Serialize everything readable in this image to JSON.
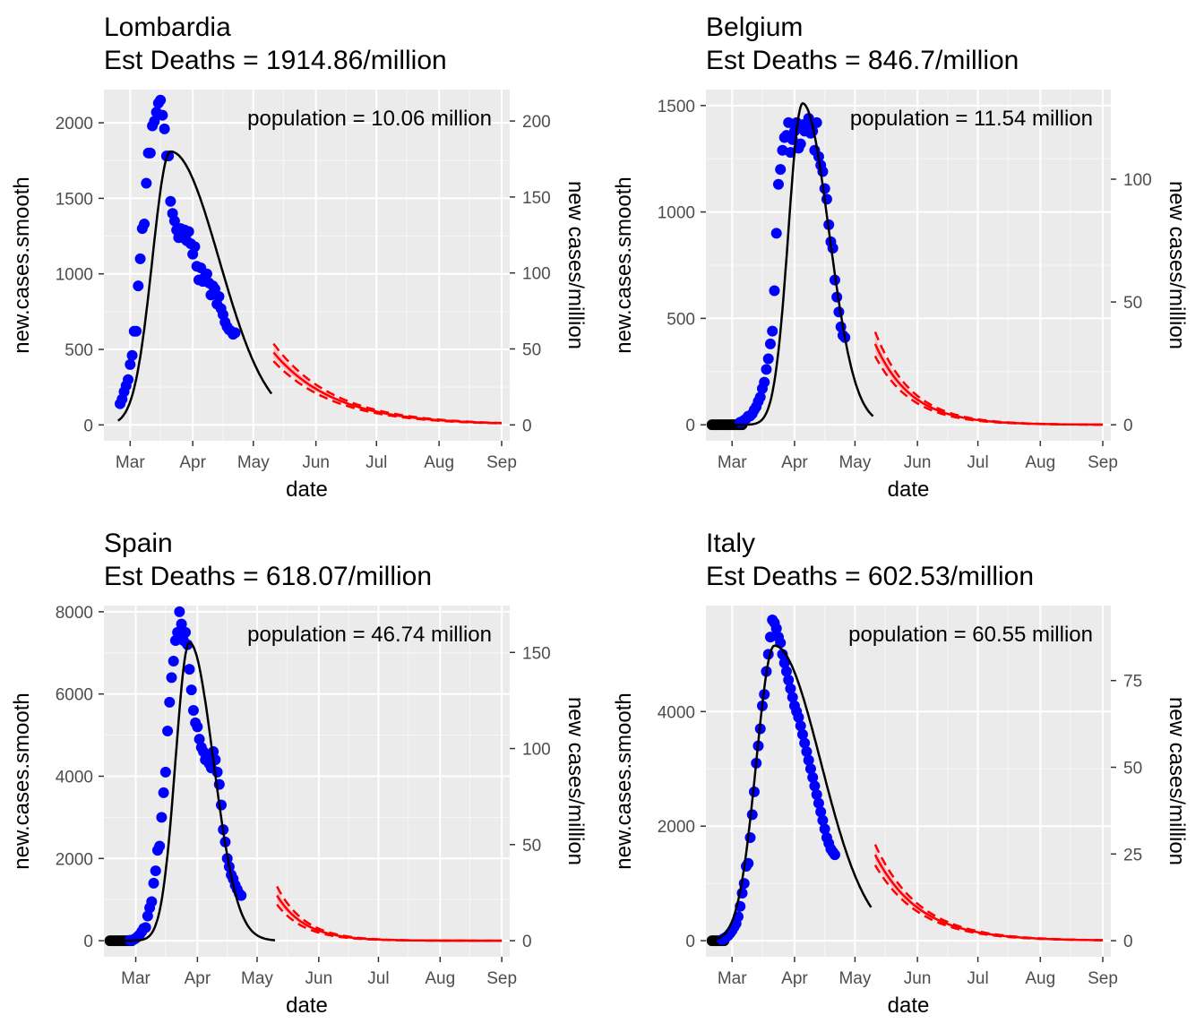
{
  "colors": {
    "panel_bg": "#ebebeb",
    "grid": "#ffffff",
    "points": "#0000ff",
    "pre_points": "#000000",
    "fit": "#000000",
    "forecast": "#ff0000",
    "band": "#ffb6c1"
  },
  "chart_data": [
    {
      "type": "scatter",
      "title": "Lombardia",
      "subtitle": "Est Deaths = 1914.86/million",
      "annotation": "population = 10.06 million",
      "xlabel": "date",
      "ylabel": "new.cases.smooth",
      "y2label": "new cases/million",
      "x_ticks": [
        "Mar",
        "Apr",
        "May",
        "Jun",
        "Jul",
        "Aug",
        "Sep"
      ],
      "y_ticks": [
        0,
        500,
        1000,
        1500,
        2000
      ],
      "y2_ticks": [
        0,
        50,
        100,
        150,
        200
      ],
      "population_million": 10.06,
      "xlim": [
        "2020-02-17",
        "2020-09-05"
      ],
      "ylim": [
        -105,
        2220
      ],
      "fit": {
        "peak_date": "2020-03-21",
        "peak_value": 1810,
        "start": "2020-02-24",
        "end": "2020-05-10",
        "sigma_left": 9,
        "sigma_right": 24,
        "shape": "normal"
      },
      "forecast": {
        "start": "2020-05-11",
        "end": "2020-09-01",
        "value_start": 480,
        "tau_days": 30,
        "band": 0.12
      },
      "pre_points": [],
      "points": [
        [
          "2020-02-25",
          140
        ],
        [
          "2020-02-26",
          170
        ],
        [
          "2020-02-27",
          220
        ],
        [
          "2020-02-28",
          260
        ],
        [
          "2020-02-29",
          300
        ],
        [
          "2020-03-01",
          400
        ],
        [
          "2020-03-02",
          460
        ],
        [
          "2020-03-03",
          620
        ],
        [
          "2020-03-04",
          620
        ],
        [
          "2020-03-05",
          920
        ],
        [
          "2020-03-06",
          1100
        ],
        [
          "2020-03-07",
          1300
        ],
        [
          "2020-03-08",
          1330
        ],
        [
          "2020-03-09",
          1600
        ],
        [
          "2020-03-10",
          1800
        ],
        [
          "2020-03-11",
          1800
        ],
        [
          "2020-03-12",
          1980
        ],
        [
          "2020-03-13",
          2010
        ],
        [
          "2020-03-14",
          2070
        ],
        [
          "2020-03-15",
          2130
        ],
        [
          "2020-03-16",
          2150
        ],
        [
          "2020-03-17",
          2050
        ],
        [
          "2020-03-18",
          1960
        ],
        [
          "2020-03-19",
          1780
        ],
        [
          "2020-03-20",
          1780
        ],
        [
          "2020-03-21",
          1480
        ],
        [
          "2020-03-22",
          1400
        ],
        [
          "2020-03-23",
          1350
        ],
        [
          "2020-03-24",
          1290
        ],
        [
          "2020-03-25",
          1240
        ],
        [
          "2020-03-26",
          1300
        ],
        [
          "2020-03-27",
          1240
        ],
        [
          "2020-03-28",
          1290
        ],
        [
          "2020-03-29",
          1220
        ],
        [
          "2020-03-30",
          1280
        ],
        [
          "2020-03-31",
          1200
        ],
        [
          "2020-04-01",
          1130
        ],
        [
          "2020-04-02",
          1180
        ],
        [
          "2020-04-03",
          1050
        ],
        [
          "2020-04-04",
          960
        ],
        [
          "2020-04-05",
          1040
        ],
        [
          "2020-04-06",
          950
        ],
        [
          "2020-04-07",
          980
        ],
        [
          "2020-04-08",
          1000
        ],
        [
          "2020-04-09",
          940
        ],
        [
          "2020-04-10",
          860
        ],
        [
          "2020-04-11",
          920
        ],
        [
          "2020-04-12",
          900
        ],
        [
          "2020-04-13",
          800
        ],
        [
          "2020-04-14",
          850
        ],
        [
          "2020-04-15",
          770
        ],
        [
          "2020-04-16",
          730
        ],
        [
          "2020-04-17",
          680
        ],
        [
          "2020-04-18",
          650
        ],
        [
          "2020-04-19",
          630
        ],
        [
          "2020-04-20",
          620
        ],
        [
          "2020-04-21",
          600
        ],
        [
          "2020-04-22",
          610
        ]
      ]
    },
    {
      "type": "scatter",
      "title": "Belgium",
      "subtitle": "Est Deaths = 846.7/million",
      "annotation": "population = 11.54 million",
      "xlabel": "date",
      "ylabel": "new.cases.smooth",
      "y2label": "new cases/million",
      "x_ticks": [
        "Mar",
        "Apr",
        "May",
        "Jun",
        "Jul",
        "Aug",
        "Sep"
      ],
      "y_ticks": [
        0,
        500,
        1000,
        1500
      ],
      "y2_ticks": [
        0,
        50,
        100
      ],
      "population_million": 11.54,
      "xlim": [
        "2020-02-17",
        "2020-09-05"
      ],
      "ylim": [
        -75,
        1575
      ],
      "fit": {
        "peak_date": "2020-04-05",
        "peak_value": 1510,
        "start": "2020-02-20",
        "end": "2020-05-10",
        "sigma_left": 7,
        "sigma_right": 13,
        "shape": "normal"
      },
      "forecast": {
        "start": "2020-05-11",
        "end": "2020-09-01",
        "value_start": 380,
        "tau_days": 18,
        "band": 0.15
      },
      "pre_points": [
        "2020-02-20",
        "2020-02-21",
        "2020-02-22",
        "2020-02-23",
        "2020-02-24",
        "2020-02-25",
        "2020-02-26",
        "2020-02-27",
        "2020-02-28",
        "2020-02-29",
        "2020-03-01",
        "2020-03-02",
        "2020-03-03",
        "2020-03-04",
        "2020-03-05",
        "2020-03-06"
      ],
      "points": [
        [
          "2020-03-05",
          12
        ],
        [
          "2020-03-06",
          15
        ],
        [
          "2020-03-07",
          22
        ],
        [
          "2020-03-08",
          28
        ],
        [
          "2020-03-09",
          40
        ],
        [
          "2020-03-10",
          42
        ],
        [
          "2020-03-11",
          52
        ],
        [
          "2020-03-12",
          70
        ],
        [
          "2020-03-13",
          85
        ],
        [
          "2020-03-14",
          110
        ],
        [
          "2020-03-15",
          130
        ],
        [
          "2020-03-16",
          170
        ],
        [
          "2020-03-17",
          200
        ],
        [
          "2020-03-18",
          260
        ],
        [
          "2020-03-19",
          310
        ],
        [
          "2020-03-20",
          380
        ],
        [
          "2020-03-21",
          440
        ],
        [
          "2020-03-22",
          630
        ],
        [
          "2020-03-23",
          900
        ],
        [
          "2020-03-24",
          1130
        ],
        [
          "2020-03-25",
          1200
        ],
        [
          "2020-03-26",
          1290
        ],
        [
          "2020-03-27",
          1350
        ],
        [
          "2020-03-28",
          1360
        ],
        [
          "2020-03-29",
          1420
        ],
        [
          "2020-03-30",
          1280
        ],
        [
          "2020-03-31",
          1340
        ],
        [
          "2020-04-01",
          1380
        ],
        [
          "2020-04-02",
          1420
        ],
        [
          "2020-04-03",
          1300
        ],
        [
          "2020-04-04",
          1320
        ],
        [
          "2020-04-05",
          1410
        ],
        [
          "2020-04-06",
          1380
        ],
        [
          "2020-04-07",
          1400
        ],
        [
          "2020-04-08",
          1440
        ],
        [
          "2020-04-09",
          1370
        ],
        [
          "2020-04-10",
          1380
        ],
        [
          "2020-04-11",
          1290
        ],
        [
          "2020-04-12",
          1420
        ],
        [
          "2020-04-13",
          1260
        ],
        [
          "2020-04-14",
          1220
        ],
        [
          "2020-04-15",
          1190
        ],
        [
          "2020-04-16",
          1110
        ],
        [
          "2020-04-17",
          1060
        ],
        [
          "2020-04-18",
          940
        ],
        [
          "2020-04-19",
          860
        ],
        [
          "2020-04-20",
          830
        ],
        [
          "2020-04-21",
          680
        ],
        [
          "2020-04-22",
          600
        ],
        [
          "2020-04-23",
          530
        ],
        [
          "2020-04-24",
          460
        ],
        [
          "2020-04-25",
          420
        ],
        [
          "2020-04-26",
          410
        ]
      ]
    },
    {
      "type": "scatter",
      "title": "Spain",
      "subtitle": "Est Deaths = 618.07/million",
      "annotation": "population = 46.74 million",
      "xlabel": "date",
      "ylabel": "new.cases.smooth",
      "y2label": "new cases/million",
      "x_ticks": [
        "Mar",
        "Apr",
        "May",
        "Jun",
        "Jul",
        "Aug",
        "Sep"
      ],
      "y_ticks": [
        0,
        2000,
        4000,
        6000,
        8000
      ],
      "y2_ticks": [
        0,
        50,
        100,
        150
      ],
      "population_million": 46.74,
      "xlim": [
        "2020-02-14",
        "2020-09-05"
      ],
      "ylim": [
        -390,
        8150
      ],
      "fit": {
        "peak_date": "2020-03-28",
        "peak_value": 7250,
        "start": "2020-02-19",
        "end": "2020-05-10",
        "sigma_left": 7,
        "sigma_right": 12,
        "shape": "normal"
      },
      "forecast": {
        "start": "2020-05-11",
        "end": "2020-09-01",
        "value_start": 1100,
        "tau_days": 14,
        "band": 0.2
      },
      "pre_points": [
        "2020-02-17",
        "2020-02-18",
        "2020-02-19",
        "2020-02-20",
        "2020-02-21",
        "2020-02-22",
        "2020-02-23",
        "2020-02-24",
        "2020-02-25",
        "2020-02-26",
        "2020-02-27",
        "2020-02-28"
      ],
      "points": [
        [
          "2020-02-27",
          10
        ],
        [
          "2020-02-28",
          15
        ],
        [
          "2020-02-29",
          30
        ],
        [
          "2020-03-01",
          60
        ],
        [
          "2020-03-02",
          100
        ],
        [
          "2020-03-03",
          150
        ],
        [
          "2020-03-04",
          220
        ],
        [
          "2020-03-05",
          300
        ],
        [
          "2020-03-06",
          320
        ],
        [
          "2020-03-07",
          600
        ],
        [
          "2020-03-08",
          800
        ],
        [
          "2020-03-09",
          950
        ],
        [
          "2020-03-10",
          1400
        ],
        [
          "2020-03-11",
          1700
        ],
        [
          "2020-03-12",
          2200
        ],
        [
          "2020-03-13",
          2300
        ],
        [
          "2020-03-14",
          3000
        ],
        [
          "2020-03-15",
          3600
        ],
        [
          "2020-03-16",
          4100
        ],
        [
          "2020-03-17",
          5100
        ],
        [
          "2020-03-18",
          5800
        ],
        [
          "2020-03-19",
          6400
        ],
        [
          "2020-03-20",
          6800
        ],
        [
          "2020-03-21",
          7300
        ],
        [
          "2020-03-22",
          7500
        ],
        [
          "2020-03-23",
          8000
        ],
        [
          "2020-03-24",
          7700
        ],
        [
          "2020-03-25",
          7300
        ],
        [
          "2020-03-26",
          7500
        ],
        [
          "2020-03-27",
          7200
        ],
        [
          "2020-03-28",
          6600
        ],
        [
          "2020-03-29",
          6100
        ],
        [
          "2020-03-30",
          5600
        ],
        [
          "2020-03-31",
          5300
        ],
        [
          "2020-04-01",
          5200
        ],
        [
          "2020-04-02",
          4900
        ],
        [
          "2020-04-03",
          4700
        ],
        [
          "2020-04-04",
          4600
        ],
        [
          "2020-04-05",
          4400
        ],
        [
          "2020-04-06",
          4500
        ],
        [
          "2020-04-07",
          4300
        ],
        [
          "2020-04-08",
          4200
        ],
        [
          "2020-04-09",
          4600
        ],
        [
          "2020-04-10",
          4400
        ],
        [
          "2020-04-11",
          4100
        ],
        [
          "2020-04-12",
          3800
        ],
        [
          "2020-04-13",
          3300
        ],
        [
          "2020-04-14",
          2700
        ],
        [
          "2020-04-15",
          2400
        ],
        [
          "2020-04-16",
          2000
        ],
        [
          "2020-04-17",
          1800
        ],
        [
          "2020-04-18",
          1600
        ],
        [
          "2020-04-19",
          1500
        ],
        [
          "2020-04-20",
          1350
        ],
        [
          "2020-04-21",
          1250
        ],
        [
          "2020-04-22",
          1150
        ],
        [
          "2020-04-23",
          1100
        ]
      ]
    },
    {
      "type": "scatter",
      "title": "Italy",
      "subtitle": "Est Deaths = 602.53/million",
      "annotation": "population = 60.55 million",
      "xlabel": "date",
      "ylabel": "new.cases.smooth",
      "y2label": "new cases/million",
      "x_ticks": [
        "Mar",
        "Apr",
        "May",
        "Jun",
        "Jul",
        "Aug",
        "Sep"
      ],
      "y_ticks": [
        0,
        2000,
        4000
      ],
      "y2_ticks": [
        0,
        25,
        50,
        75
      ],
      "population_million": 60.55,
      "xlim": [
        "2020-02-17",
        "2020-09-05"
      ],
      "ylim": [
        -280,
        5850
      ],
      "fit": {
        "peak_date": "2020-03-22",
        "peak_value": 5150,
        "start": "2020-02-20",
        "end": "2020-05-09",
        "sigma_left": 9,
        "sigma_right": 23,
        "shape": "normal"
      },
      "forecast": {
        "start": "2020-05-11",
        "end": "2020-09-01",
        "value_start": 1500,
        "tau_days": 22,
        "band": 0.12
      },
      "pre_points": [
        "2020-02-20",
        "2020-02-21",
        "2020-02-22",
        "2020-02-23",
        "2020-02-24",
        "2020-02-25",
        "2020-02-26"
      ],
      "points": [
        [
          "2020-02-25",
          20
        ],
        [
          "2020-02-26",
          40
        ],
        [
          "2020-02-27",
          60
        ],
        [
          "2020-02-28",
          90
        ],
        [
          "2020-02-29",
          130
        ],
        [
          "2020-03-01",
          180
        ],
        [
          "2020-03-02",
          240
        ],
        [
          "2020-03-03",
          300
        ],
        [
          "2020-03-04",
          420
        ],
        [
          "2020-03-05",
          600
        ],
        [
          "2020-03-06",
          830
        ],
        [
          "2020-03-07",
          1000
        ],
        [
          "2020-03-08",
          1300
        ],
        [
          "2020-03-09",
          1350
        ],
        [
          "2020-03-10",
          1800
        ],
        [
          "2020-03-11",
          2200
        ],
        [
          "2020-03-12",
          2600
        ],
        [
          "2020-03-13",
          3100
        ],
        [
          "2020-03-14",
          3400
        ],
        [
          "2020-03-15",
          3700
        ],
        [
          "2020-03-16",
          4100
        ],
        [
          "2020-03-17",
          4300
        ],
        [
          "2020-03-18",
          4700
        ],
        [
          "2020-03-19",
          5000
        ],
        [
          "2020-03-20",
          5300
        ],
        [
          "2020-03-21",
          5600
        ],
        [
          "2020-03-22",
          5550
        ],
        [
          "2020-03-23",
          5450
        ],
        [
          "2020-03-24",
          5300
        ],
        [
          "2020-03-25",
          5200
        ],
        [
          "2020-03-26",
          5000
        ],
        [
          "2020-03-27",
          4850
        ],
        [
          "2020-03-28",
          4700
        ],
        [
          "2020-03-29",
          4550
        ],
        [
          "2020-03-30",
          4400
        ],
        [
          "2020-03-31",
          4250
        ],
        [
          "2020-04-01",
          4100
        ],
        [
          "2020-04-02",
          4000
        ],
        [
          "2020-04-03",
          3900
        ],
        [
          "2020-04-04",
          3750
        ],
        [
          "2020-04-05",
          3600
        ],
        [
          "2020-04-06",
          3450
        ],
        [
          "2020-04-07",
          3300
        ],
        [
          "2020-04-08",
          3150
        ],
        [
          "2020-04-09",
          3000
        ],
        [
          "2020-04-10",
          2850
        ],
        [
          "2020-04-11",
          2700
        ],
        [
          "2020-04-12",
          2550
        ],
        [
          "2020-04-13",
          2400
        ],
        [
          "2020-04-14",
          2250
        ],
        [
          "2020-04-15",
          2100
        ],
        [
          "2020-04-16",
          1950
        ],
        [
          "2020-04-17",
          1800
        ],
        [
          "2020-04-18",
          1700
        ],
        [
          "2020-04-19",
          1600
        ],
        [
          "2020-04-20",
          1550
        ],
        [
          "2020-04-21",
          1500
        ]
      ]
    }
  ]
}
